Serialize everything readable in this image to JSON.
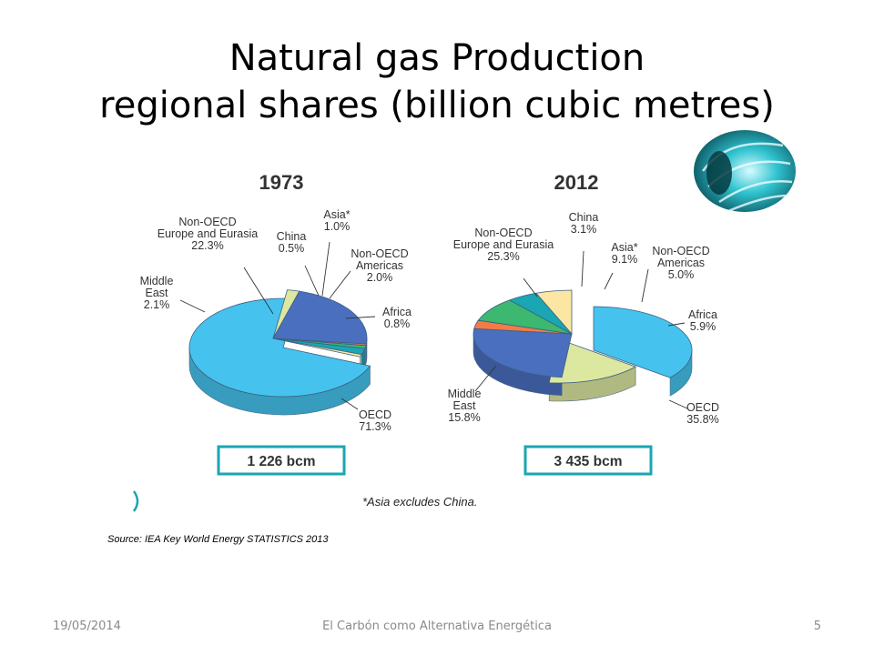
{
  "slide": {
    "title_line1": "Natural gas Production",
    "title_line2": "regional shares  (billion cubic metres)",
    "source": "Source: IEA Key World Energy STATISTICS 2013",
    "footnote": "*Asia excludes China.",
    "date": "19/05/2014",
    "footer_text": "El Carbón como Alternativa Energética",
    "page_number": "5"
  },
  "colors": {
    "OECD": "#45c3ee",
    "Middle East": "#dce8a0",
    "Non-OECD Europe and Eurasia": "#4a6fbf",
    "China": "#f47b45",
    "Asia*": "#3cb870",
    "Non-OECD Americas": "#1aa6b3",
    "Africa": "#fbe6a3",
    "total_box_border": "#1aa6b3"
  },
  "chart_data": [
    {
      "type": "pie",
      "title": "1973",
      "total_label": "1 226 bcm",
      "slices": [
        {
          "label": "OECD",
          "value": 71.3,
          "display": "71.3%"
        },
        {
          "label": "Middle East",
          "value": 2.1,
          "display": "2.1%"
        },
        {
          "label": "Non-OECD Europe and Eurasia",
          "value": 22.3,
          "display": "22.3%"
        },
        {
          "label": "China",
          "value": 0.5,
          "display": "0.5%"
        },
        {
          "label": "Asia*",
          "value": 1.0,
          "display": "1.0%"
        },
        {
          "label": "Non-OECD Americas",
          "value": 2.0,
          "display": "2.0%"
        },
        {
          "label": "Africa",
          "value": 0.8,
          "display": "0.8%"
        }
      ]
    },
    {
      "type": "pie",
      "title": "2012",
      "total_label": "3 435 bcm",
      "slices": [
        {
          "label": "OECD",
          "value": 35.8,
          "display": "35.8%"
        },
        {
          "label": "Middle East",
          "value": 15.8,
          "display": "15.8%"
        },
        {
          "label": "Non-OECD Europe and Eurasia",
          "value": 25.3,
          "display": "25.3%"
        },
        {
          "label": "China",
          "value": 3.1,
          "display": "3.1%"
        },
        {
          "label": "Asia*",
          "value": 9.1,
          "display": "9.1%"
        },
        {
          "label": "Non-OECD Americas",
          "value": 5.0,
          "display": "5.0%"
        },
        {
          "label": "Africa",
          "value": 5.9,
          "display": "5.9%"
        }
      ]
    }
  ]
}
